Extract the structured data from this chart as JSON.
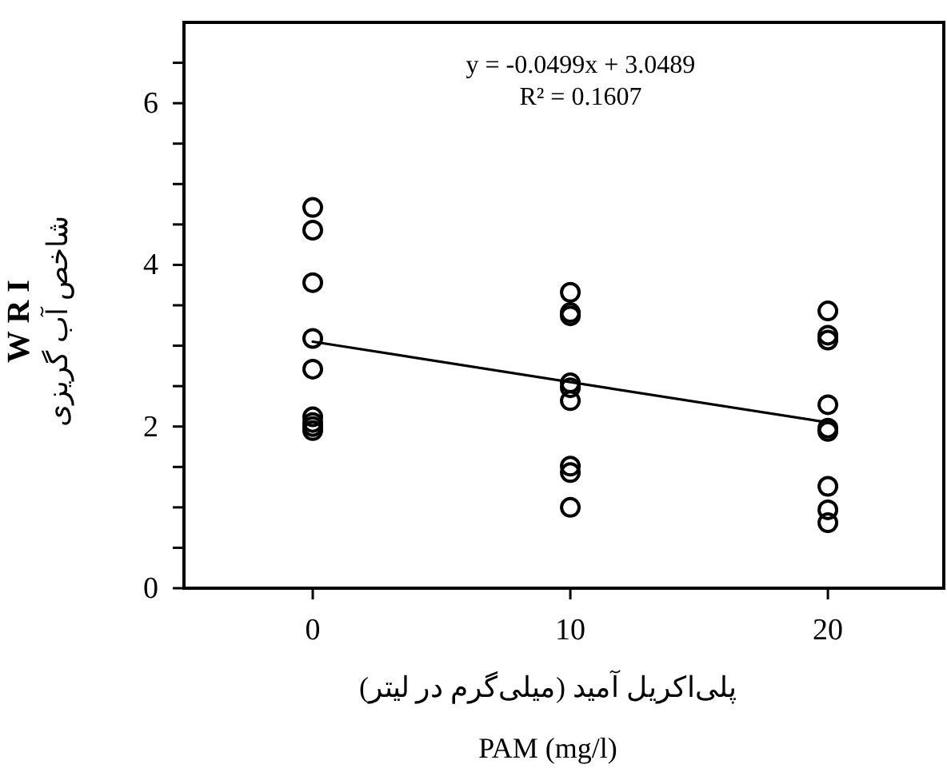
{
  "chart_data": {
    "type": "scatter",
    "xlabel": "پلی‌اکریل آمید (میلی‌گرم در لیتر)\nPAM (mg/l)",
    "ylabel": "W R I\nشاخص آب گریزی",
    "annotations": [
      "y = -0.0499x + 3.0489\nR² = 0.1607"
    ],
    "xlim": [
      -5,
      24.5
    ],
    "xticks": [
      0,
      10,
      20
    ],
    "ylim": [
      0,
      7
    ],
    "yticks": [
      0,
      {
        "value": 0.5,
        "label": null
      },
      {
        "value": 1,
        "label": null
      },
      {
        "value": 1.5,
        "label": null
      },
      2,
      {
        "value": 2.5,
        "label": null
      },
      {
        "value": 3,
        "label": null
      },
      {
        "value": 3.5,
        "label": null
      },
      4,
      {
        "value": 4.5,
        "label": null
      },
      {
        "value": 5,
        "label": null
      },
      {
        "value": 5.5,
        "label": null
      },
      6,
      {
        "value": 6.5,
        "label": null
      }
    ],
    "grid": false,
    "marker": "circle",
    "series": [
      {
        "type": "scatter",
        "color": "#000000",
        "x": [
          0,
          0,
          0,
          0,
          0,
          0,
          0,
          0,
          0,
          10,
          10,
          10,
          10,
          10,
          10,
          10,
          10,
          10,
          20,
          20,
          20,
          20,
          20,
          20,
          20,
          20,
          20
        ],
        "values": [
          4.71,
          4.43,
          3.78,
          3.09,
          2.71,
          2.12,
          2.05,
          2.0,
          1.95,
          3.66,
          3.41,
          3.37,
          2.54,
          2.48,
          2.32,
          1.51,
          1.43,
          1.0,
          3.43,
          3.13,
          3.07,
          2.27,
          1.98,
          1.94,
          1.26,
          0.97,
          0.81
        ]
      },
      {
        "type": "line",
        "color": "#000000",
        "marker": "none",
        "line_style": "solid",
        "x": [
          0,
          20
        ],
        "values": [
          3.05,
          2.05
        ]
      }
    ]
  }
}
